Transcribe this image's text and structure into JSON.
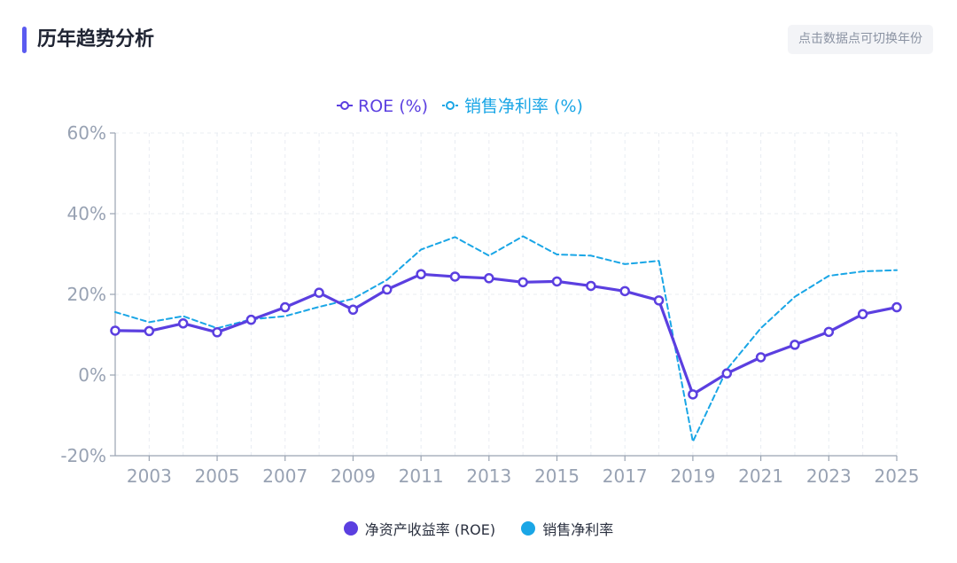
{
  "header": {
    "title": "历年趋势分析",
    "hint": "点击数据点可切换年份"
  },
  "colors": {
    "accent": "#5b5bf0",
    "roe": "#5b3fe0",
    "net_margin": "#1aa6e6",
    "axis_text": "#98a2b3",
    "grid": "#e8ecf2"
  },
  "chart_data": {
    "type": "line",
    "x": [
      2002,
      2003,
      2004,
      2005,
      2006,
      2007,
      2008,
      2009,
      2010,
      2011,
      2012,
      2013,
      2014,
      2015,
      2016,
      2017,
      2018,
      2019,
      2020,
      2021,
      2022,
      2023,
      2024,
      2025
    ],
    "x_tick_labels": [
      "2003",
      "2005",
      "2007",
      "2009",
      "2011",
      "2013",
      "2015",
      "2017",
      "2019",
      "2021",
      "2023",
      "2025"
    ],
    "ylim": [
      -20,
      60
    ],
    "y_ticks": [
      -20,
      0,
      20,
      40,
      60
    ],
    "y_tick_labels": [
      "-20%",
      "0%",
      "20%",
      "40%",
      "60%"
    ],
    "grid": true,
    "top_legend": [
      "ROE (%)",
      "销售净利率 (%)"
    ],
    "series": [
      {
        "name": "净资产收益率 (ROE)",
        "style": "solid",
        "values": [
          11.0,
          10.9,
          12.8,
          10.6,
          13.7,
          16.8,
          20.4,
          16.2,
          21.2,
          25.0,
          24.4,
          24.0,
          23.0,
          23.2,
          22.1,
          20.8,
          18.5,
          -4.8,
          0.4,
          4.4,
          7.5,
          10.7,
          15.1,
          16.8
        ]
      },
      {
        "name": "销售净利率",
        "style": "dashed",
        "values": [
          15.6,
          13.1,
          14.6,
          11.6,
          13.8,
          14.6,
          16.9,
          18.9,
          23.6,
          31.1,
          34.2,
          29.6,
          34.4,
          29.9,
          29.6,
          27.5,
          28.3,
          -16.5,
          1.4,
          11.6,
          19.4,
          24.6,
          25.7,
          26.0
        ]
      }
    ]
  },
  "legend_bottom": {
    "items": [
      {
        "label": "净资产收益率 (ROE)",
        "color": "#5b3fe0"
      },
      {
        "label": "销售净利率",
        "color": "#1aa6e6"
      }
    ]
  }
}
